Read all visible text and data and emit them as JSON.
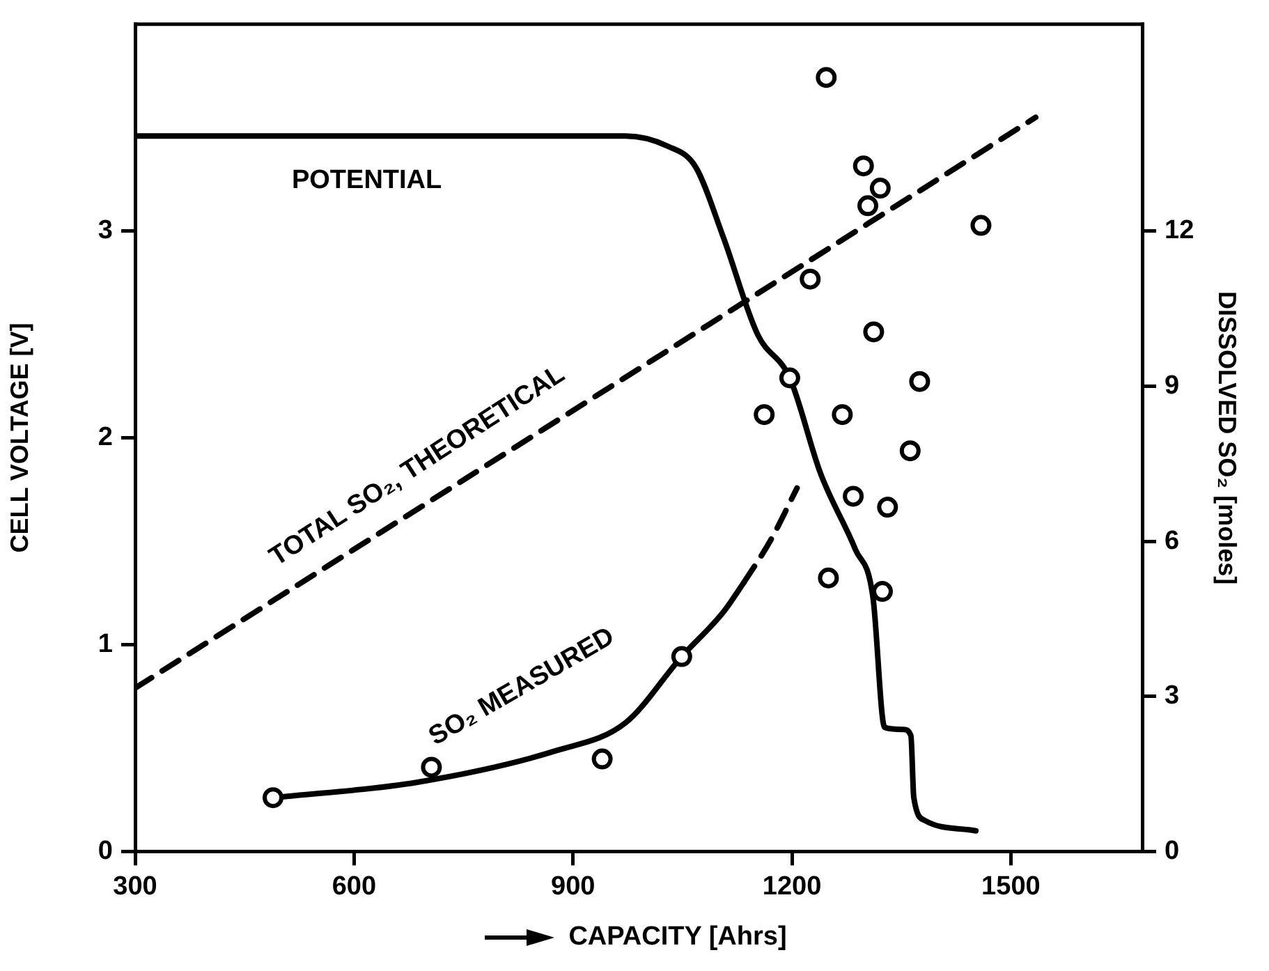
{
  "chart_data": {
    "type": "line",
    "xlabel": "CAPACITY [Ahrs]",
    "ylabel": "CELL VOLTAGE [V]",
    "y2label": "DISSOLVED SO₂ [moles]",
    "xlim": [
      300,
      1680
    ],
    "xticks": [
      300,
      600,
      900,
      1200,
      1500
    ],
    "ylim": [
      0,
      4
    ],
    "yticks": [
      0,
      1,
      2,
      3
    ],
    "y2lim": [
      0,
      16
    ],
    "y2ticks": [
      0,
      3,
      6,
      9,
      12
    ],
    "series": [
      {
        "name": "POTENTIAL",
        "color": "#000000",
        "marker": "none",
        "line_style": "solid",
        "x": [
          300,
          972,
          1030,
          1068,
          1106,
          1153,
          1197,
          1239,
          1287,
          1311,
          1327,
          1353,
          1363,
          1367,
          1382,
          1452
        ],
        "values": [
          3.46,
          3.46,
          3.41,
          3.31,
          2.97,
          2.5,
          2.29,
          1.83,
          1.46,
          1.23,
          0.6,
          0.59,
          0.56,
          0.26,
          0.15,
          0.1
        ]
      },
      {
        "name": "TOTAL SO₂, THEORETICAL",
        "axis": "y2",
        "color": "#000000",
        "marker": "none",
        "line_style": "dashed",
        "x": [
          300,
          1534
        ],
        "values": [
          3.16,
          14.2
        ]
      },
      {
        "name": "SO₂ MEASURED",
        "axis": "y2",
        "color": "#000000",
        "marker": "none",
        "line_style": "solid",
        "x": [
          489,
          687,
          877,
          972,
          1049,
          1106,
          1134
        ],
        "values": [
          1.04,
          1.34,
          1.95,
          2.49,
          3.77,
          4.63,
          5.2
        ]
      },
      {
        "axis": "y2",
        "color": "#000000",
        "marker": "none",
        "line_style": "dashed",
        "x": [
          1134,
          1170,
          1207
        ],
        "values": [
          5.2,
          6.0,
          7.03
        ]
      },
      {
        "type": "scatter",
        "color": "#000000",
        "marker": "circle",
        "x": [
          1197
        ],
        "values": [
          2.29
        ]
      },
      {
        "type": "scatter",
        "axis": "y2",
        "color": "#000000",
        "marker": "circle",
        "x": [
          489,
          706,
          940,
          1049,
          1247,
          1298,
          1321,
          1304,
          1459,
          1225,
          1312,
          1375,
          1162,
          1269,
          1362,
          1284,
          1331,
          1250,
          1324
        ],
        "values": [
          1.04,
          1.63,
          1.79,
          3.77,
          14.97,
          13.26,
          12.83,
          12.49,
          12.11,
          11.07,
          10.05,
          9.09,
          8.45,
          8.45,
          7.75,
          6.87,
          6.66,
          5.29,
          5.03
        ]
      }
    ]
  }
}
